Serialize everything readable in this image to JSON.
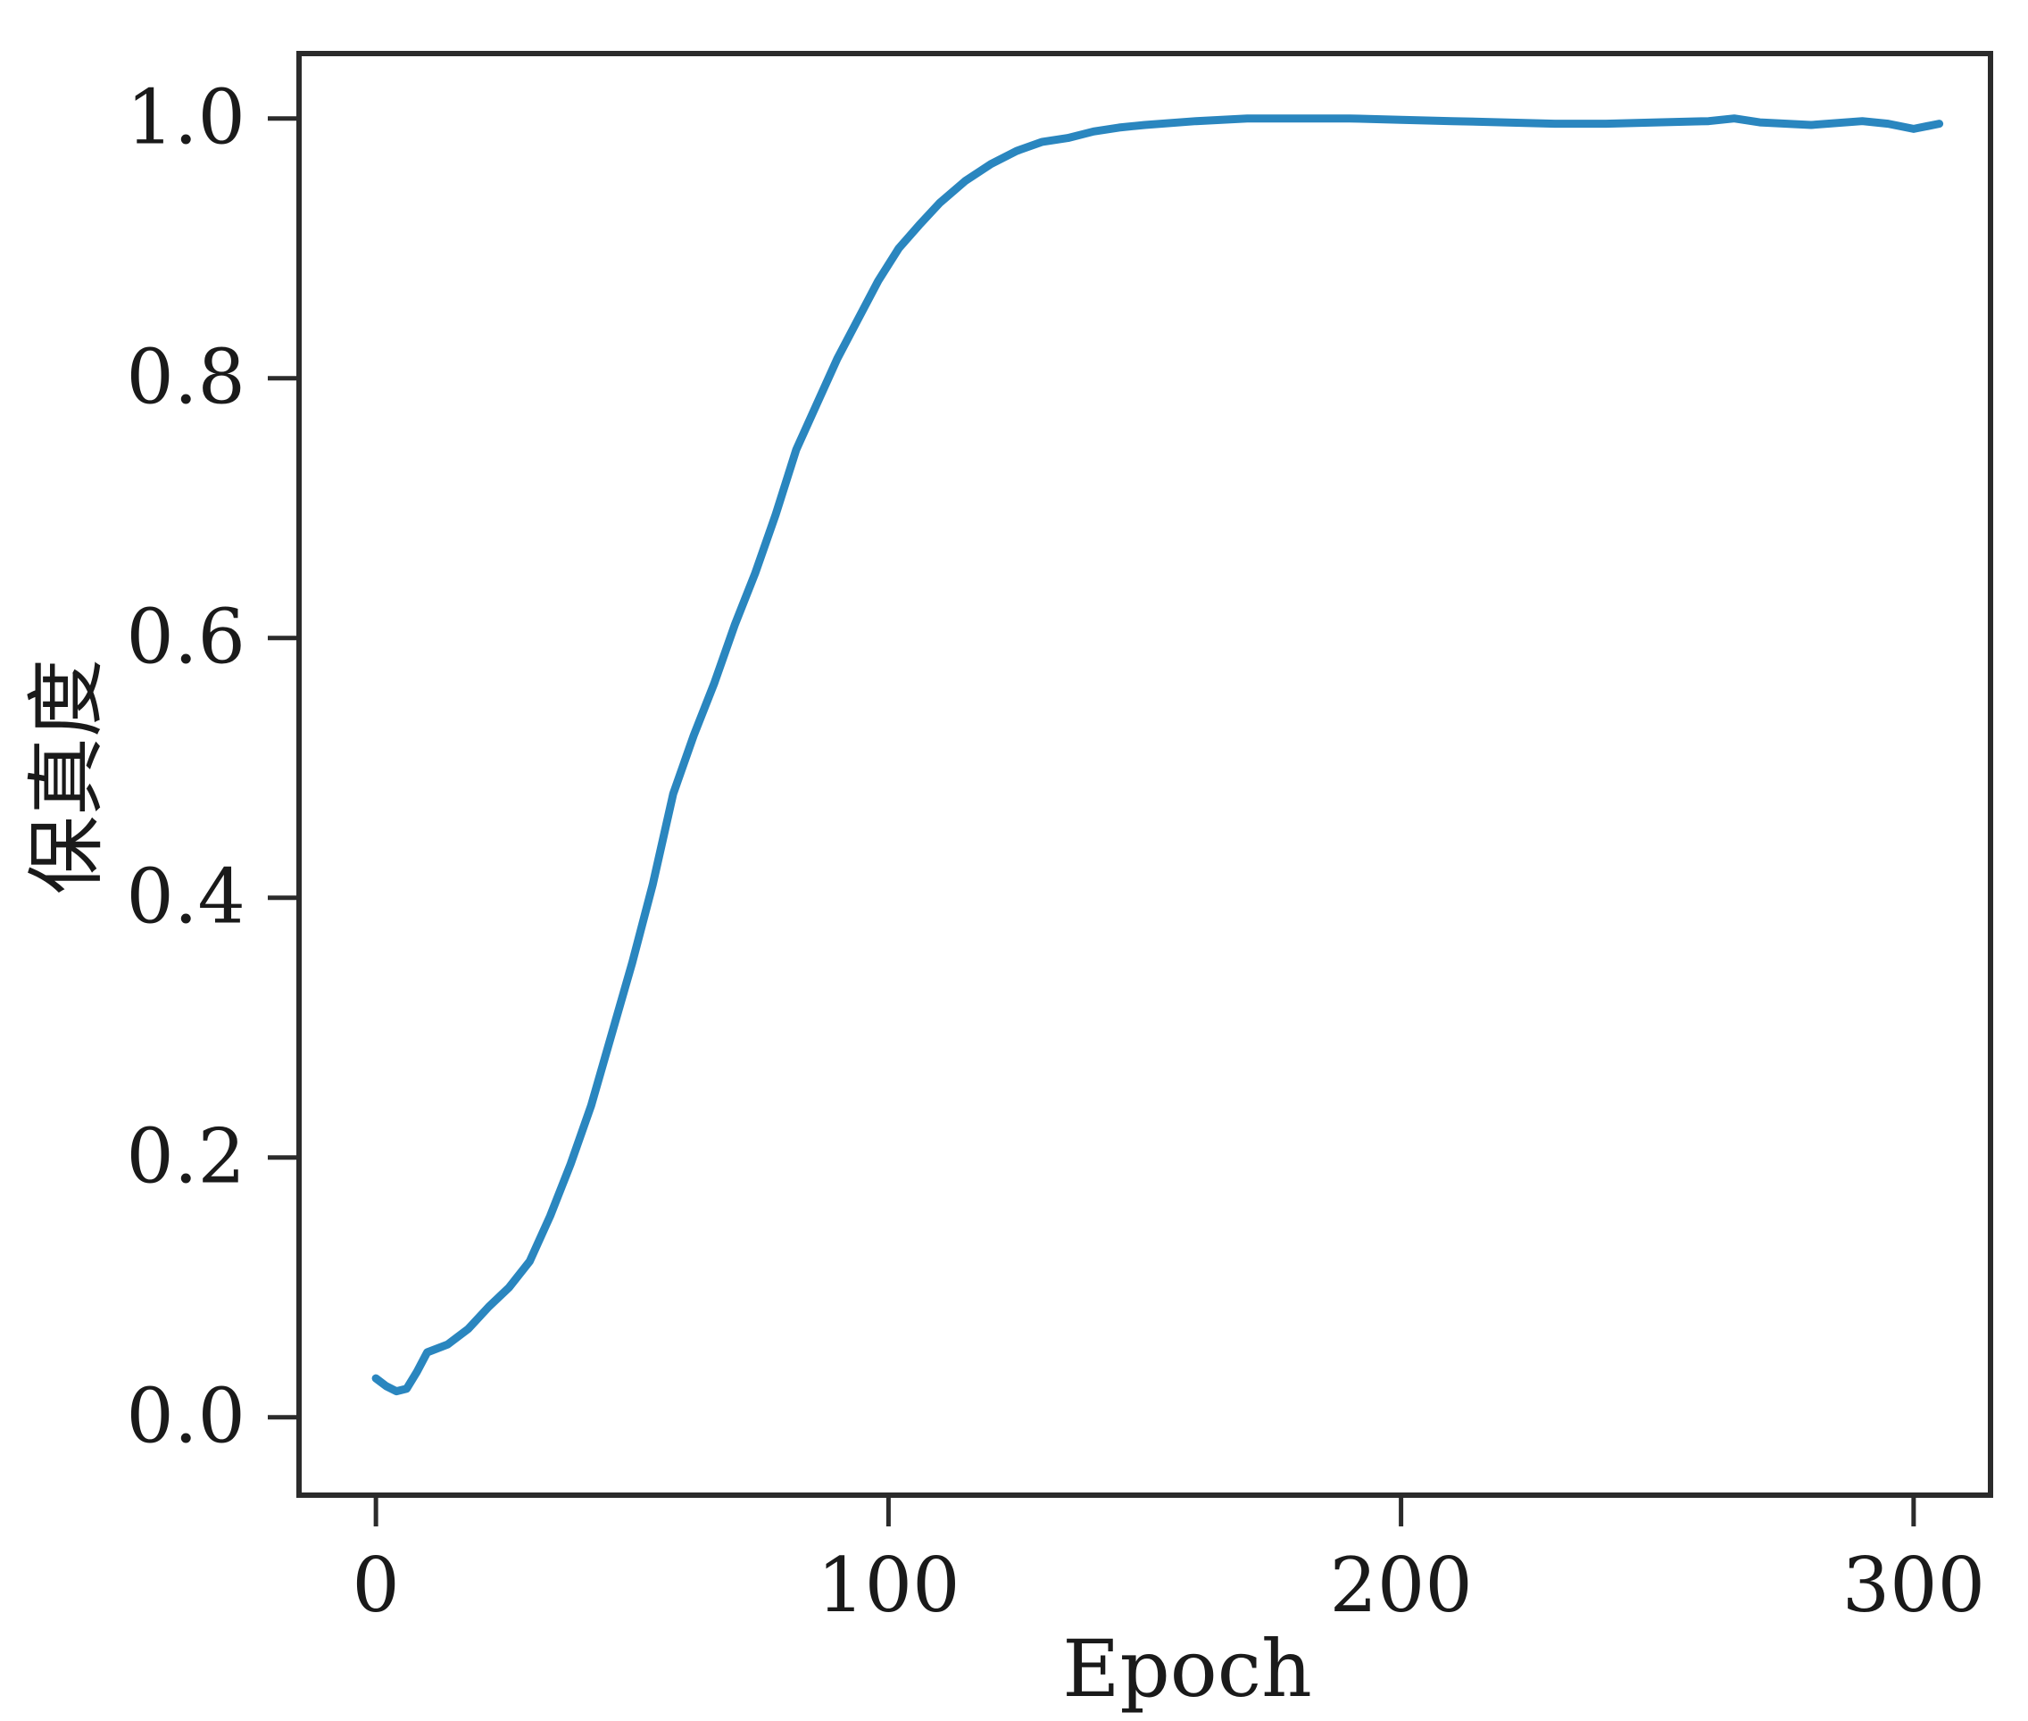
{
  "chart_data": {
    "type": "line",
    "title": "",
    "xlabel": "Epoch",
    "ylabel": "保真度",
    "xlim": [
      -15,
      315
    ],
    "ylim": [
      -0.06,
      1.05
    ],
    "xticks": [
      0,
      100,
      200,
      300
    ],
    "xtick_labels": [
      "0",
      "100",
      "200",
      "300"
    ],
    "yticks": [
      0.0,
      0.2,
      0.4,
      0.6,
      0.8,
      1.0
    ],
    "ytick_labels": [
      "0.0",
      "0.2",
      "0.4",
      "0.6",
      "0.8",
      "1.0"
    ],
    "grid": false,
    "legend": "none",
    "line_color": "#2a86bf",
    "series": [
      {
        "x": [
          0,
          2,
          4,
          6,
          8,
          10,
          14,
          18,
          22,
          26,
          30,
          34,
          38,
          42,
          46,
          50,
          54,
          58,
          62,
          66,
          70,
          74,
          78,
          82,
          86,
          90,
          94,
          98,
          102,
          106,
          110,
          115,
          120,
          125,
          130,
          135,
          140,
          145,
          150,
          160,
          170,
          180,
          190,
          200,
          210,
          220,
          230,
          240,
          250,
          260,
          265,
          270,
          280,
          290,
          295,
          300,
          305
        ],
        "y": [
          0.03,
          0.024,
          0.02,
          0.022,
          0.035,
          0.05,
          0.056,
          0.068,
          0.085,
          0.1,
          0.12,
          0.155,
          0.195,
          0.24,
          0.295,
          0.35,
          0.41,
          0.48,
          0.525,
          0.565,
          0.61,
          0.65,
          0.695,
          0.745,
          0.78,
          0.815,
          0.845,
          0.875,
          0.9,
          0.918,
          0.935,
          0.952,
          0.965,
          0.975,
          0.982,
          0.985,
          0.99,
          0.993,
          0.995,
          0.998,
          1.0,
          1.0,
          1.0,
          0.999,
          0.998,
          0.997,
          0.996,
          0.996,
          0.997,
          0.998,
          1.0,
          0.997,
          0.995,
          0.998,
          0.996,
          0.992,
          0.996
        ]
      }
    ]
  }
}
